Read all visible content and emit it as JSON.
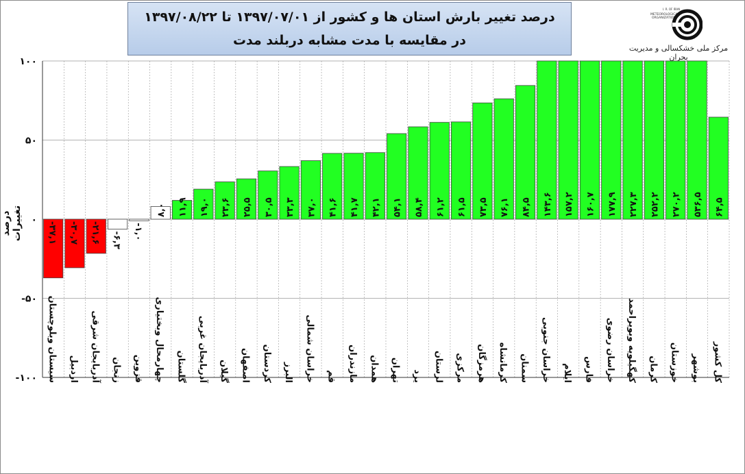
{
  "title": {
    "line1": "درصد تغییر بارش استان ها و کشور از     ۱۳۹۷/۰۷/۰۱  تا  ۱۳۹۷/۰۸/۲۲",
    "line2": "در مقایسه با مدت مشابه دربلند مدت"
  },
  "organization": "مرکز ملی خشکسالی و مدیریت بحران",
  "logo_text": [
    "I. R. OF IRAN",
    "METEOROLOGICAL",
    "ORGANIZATION"
  ],
  "colors": {
    "negative": "#ff0000",
    "small": "#ffffff",
    "positive": "#22ff22",
    "grid": "#999999"
  },
  "chart_data": {
    "type": "bar",
    "title": "درصد تغییر بارش استان ها و کشور از ۱۳۹۷/۰۷/۰۱ تا ۱۳۹۷/۰۸/۲۲ در مقایسه با مدت مشابه دربلند مدت",
    "ylabel": "درصد تغییرات",
    "xlabel": "",
    "ylim": [
      -100,
      100
    ],
    "yticks": [
      -100,
      -50,
      0,
      50,
      100
    ],
    "ytick_labels": [
      "-۱۰۰",
      "-۵۰",
      "۰",
      "۵۰",
      "۱۰۰"
    ],
    "grid": true,
    "categories": [
      "سیستان وبلوچستان",
      "اردبیل",
      "آذربایجان شرقی",
      "زنجان",
      "قزوین",
      "چهارمحال وبختیاری",
      "گلستان",
      "آذربایجان غربی",
      "گیلان",
      "اصفهان",
      "کردستان",
      "البرز",
      "خراسان شمالی",
      "قم",
      "مازندران",
      "همدان",
      "تهران",
      "یزد",
      "لرستان",
      "مرکزی",
      "هرمزگان",
      "کرمانشاه",
      "سمنان",
      "خراسان جنوبی",
      "ایلام",
      "فارس",
      "خراسان رضوی",
      "کهگیلویه وبویراحمد",
      "کرمان",
      "خوزستان",
      "بوشهر",
      "کل کشور"
    ],
    "values": [
      -37.1,
      -30.7,
      -21.6,
      -6.3,
      -1.0,
      8.0,
      11.9,
      19.0,
      23.6,
      25.5,
      30.5,
      33.3,
      37.0,
      41.6,
      41.7,
      42.1,
      54.1,
      58.4,
      61.2,
      61.5,
      73.5,
      76.1,
      84.5,
      143.6,
      157.2,
      160.7,
      177.9,
      227.3,
      252.2,
      270.2,
      536.5,
      64.5
    ],
    "value_labels": [
      "-۳۷,۱",
      "-۳۰,۷",
      "-۲۱,۶",
      "-۶,۳",
      "-۱,۰",
      "۸,۰",
      "۱۱,۹",
      "۱۹,۰",
      "۲۳,۶",
      "۲۵,۵",
      "۳۰,۵",
      "۳۳,۳",
      "۳۷,۰",
      "۴۱,۶",
      "۴۱,۷",
      "۴۲,۱",
      "۵۴,۱",
      "۵۸,۴",
      "۶۱,۲",
      "۶۱,۵",
      "۷۳,۵",
      "۷۶,۱",
      "۸۴,۵",
      "۱۴۳,۶",
      "۱۵۷,۲",
      "۱۶۰,۷",
      "۱۷۷,۹",
      "۲۲۷,۳",
      "۲۵۲,۲",
      "۲۷۰,۲",
      "۵۳۶,۵",
      "۶۴,۵"
    ]
  }
}
